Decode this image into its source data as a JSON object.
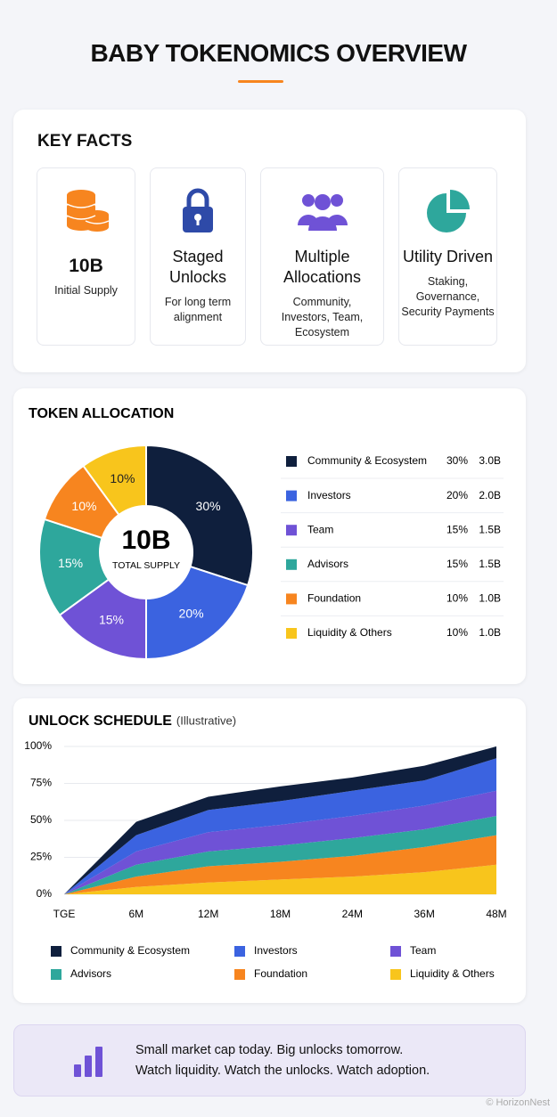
{
  "header": {
    "title": "BABY TOKENOMICS OVERVIEW"
  },
  "key_facts": {
    "title": "KEY FACTS",
    "cards": [
      {
        "value": "10B",
        "text": "Initial Supply"
      },
      {
        "title": "Staged Unlocks",
        "text": "For long term alignment"
      },
      {
        "title": "Multiple Allocations",
        "text": "Community, Investors, Team, Ecosystem"
      },
      {
        "title": "Utility Driven",
        "text": "Staking, Governance, Security Payments"
      }
    ]
  },
  "chart_data": [
    {
      "type": "pie",
      "title": "TOKEN ALLOCATION",
      "center_value": "10B",
      "center_label": "TOTAL SUPPLY",
      "categories": [
        "Community & Ecosystem",
        "Investors",
        "Team",
        "Advisors",
        "Foundation",
        "Liquidity & Others"
      ],
      "values": [
        30,
        20,
        15,
        15,
        10,
        10
      ],
      "value_labels": [
        "30%",
        "20%",
        "15%",
        "15%",
        "10%",
        "10%"
      ],
      "colors": [
        "#0f1f3d",
        "#3b63e0",
        "#6f52d6",
        "#2ea79c",
        "#f7851f",
        "#f8c51c"
      ],
      "amounts": [
        3,
        2,
        1.5,
        1.5,
        1,
        1
      ],
      "amount_labels": [
        "3.0B",
        "2.0B",
        "1.5B",
        "1.5B",
        "1.0B",
        "1.0B"
      ]
    },
    {
      "type": "area",
      "stacked": true,
      "title": "UNLOCK SCHEDULE",
      "subtitle": "(Illustrative)",
      "categories": [
        "TGE",
        "6M",
        "12M",
        "18M",
        "24M",
        "36M",
        "48M"
      ],
      "ylim": [
        0,
        100
      ],
      "yticks": [
        {
          "value": 0,
          "label": "0%"
        },
        {
          "value": 25,
          "label": "25%"
        },
        {
          "value": 50,
          "label": "50%"
        },
        {
          "value": 75,
          "label": "75%"
        },
        {
          "value": 100,
          "label": "100%"
        }
      ],
      "grid": true,
      "series": [
        {
          "name": "Community & Ecosystem",
          "color": "#0f1f3d",
          "values": [
            0,
            9,
            9,
            10,
            9,
            10,
            8
          ]
        },
        {
          "name": "Investors",
          "color": "#3b63e0",
          "values": [
            0,
            11,
            15,
            16,
            17,
            17,
            22
          ]
        },
        {
          "name": "Team",
          "color": "#6f52d6",
          "values": [
            0,
            9,
            13,
            14,
            15,
            16,
            17
          ]
        },
        {
          "name": "Advisors",
          "color": "#2ea79c",
          "values": [
            0,
            8,
            10,
            11,
            12,
            12,
            13
          ]
        },
        {
          "name": "Foundation",
          "color": "#f7851f",
          "values": [
            0,
            7,
            11,
            12,
            14,
            17,
            20
          ]
        },
        {
          "name": "Liquidity & Others",
          "color": "#f8c51c",
          "values": [
            0,
            5,
            8,
            10,
            12,
            15,
            20
          ]
        }
      ]
    }
  ],
  "banner": {
    "lines": [
      "Small market cap today. Big unlocks tomorrow.",
      "Watch liquidity. Watch the unlocks. Watch adoption."
    ]
  },
  "watermark": "© HorizonNest"
}
